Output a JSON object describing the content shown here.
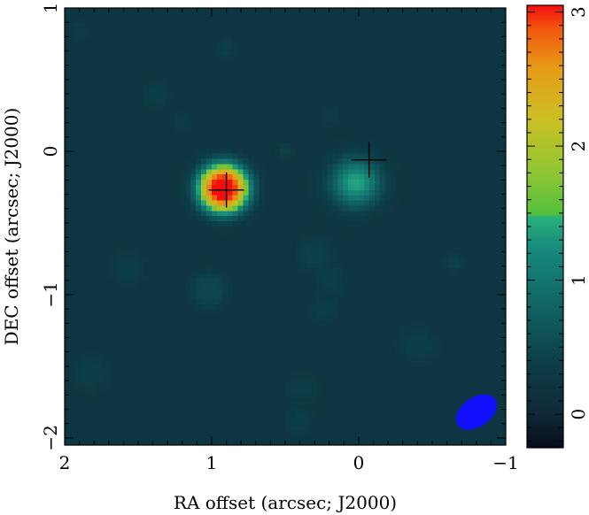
{
  "chart_data": {
    "type": "heatmap",
    "title": "",
    "xlabel": "RA offset (arcsec; J2000)",
    "ylabel": "DEC offset (arcsec; J2000)",
    "xlim": [
      2.0,
      -1.0
    ],
    "ylim": [
      -2.05,
      1.0
    ],
    "x_ticks": [
      2,
      1,
      0,
      -1
    ],
    "x_tick_labels": [
      "2",
      "1",
      "0",
      "−1"
    ],
    "y_ticks": [
      1,
      0,
      -1,
      -2
    ],
    "y_tick_labels": [
      "1",
      "0",
      "−1",
      "−2"
    ],
    "colorbar": {
      "range": [
        -0.25,
        3.05
      ],
      "ticks": [
        0,
        1,
        2,
        3
      ],
      "tick_labels": [
        "0",
        "1",
        "2",
        "3"
      ]
    },
    "background_level": 0.25,
    "sources": [
      {
        "x": 0.92,
        "y": -0.26,
        "peak": 3.05,
        "width": 0.17,
        "sharpness": 2.8
      },
      {
        "x": 0.02,
        "y": -0.22,
        "peak": 1.15,
        "width": 0.16,
        "sharpness": 2.2
      }
    ],
    "noise_blobs": [
      {
        "x": 1.9,
        "y": 0.84,
        "radius": 0.06,
        "level": 0.1
      },
      {
        "x": 0.9,
        "y": 0.72,
        "radius": 0.07,
        "level": 0.12
      },
      {
        "x": 1.37,
        "y": 0.4,
        "radius": 0.09,
        "level": 0.12
      },
      {
        "x": 1.2,
        "y": 0.2,
        "radius": 0.06,
        "level": 0.1
      },
      {
        "x": 0.2,
        "y": 0.25,
        "radius": 0.06,
        "level": 0.1
      },
      {
        "x": 0.5,
        "y": 0.0,
        "radius": 0.05,
        "level": 0.15
      },
      {
        "x": 1.57,
        "y": -0.82,
        "radius": 0.11,
        "level": 0.12
      },
      {
        "x": 1.02,
        "y": -0.97,
        "radius": 0.13,
        "level": 0.22
      },
      {
        "x": 0.3,
        "y": -0.72,
        "radius": 0.12,
        "level": 0.15
      },
      {
        "x": 0.18,
        "y": -0.9,
        "radius": 0.1,
        "level": 0.12
      },
      {
        "x": 0.24,
        "y": -1.1,
        "radius": 0.09,
        "level": 0.12
      },
      {
        "x": -0.65,
        "y": -0.78,
        "radius": 0.06,
        "level": 0.15
      },
      {
        "x": 1.82,
        "y": -1.55,
        "radius": 0.12,
        "level": 0.12
      },
      {
        "x": -0.4,
        "y": -1.35,
        "radius": 0.13,
        "level": 0.12
      },
      {
        "x": 0.38,
        "y": -1.65,
        "radius": 0.1,
        "level": 0.12
      },
      {
        "x": 0.4,
        "y": -1.88,
        "radius": 0.09,
        "level": 0.12
      }
    ],
    "markers": [
      {
        "x": 0.9,
        "y": -0.27,
        "arm": 0.12
      },
      {
        "x": -0.07,
        "y": -0.06,
        "arm": 0.12
      }
    ],
    "beam": {
      "x": -0.8,
      "y": -1.82,
      "major": 0.31,
      "minor": 0.18,
      "angle_deg": -35,
      "color": "#1010ff"
    }
  }
}
